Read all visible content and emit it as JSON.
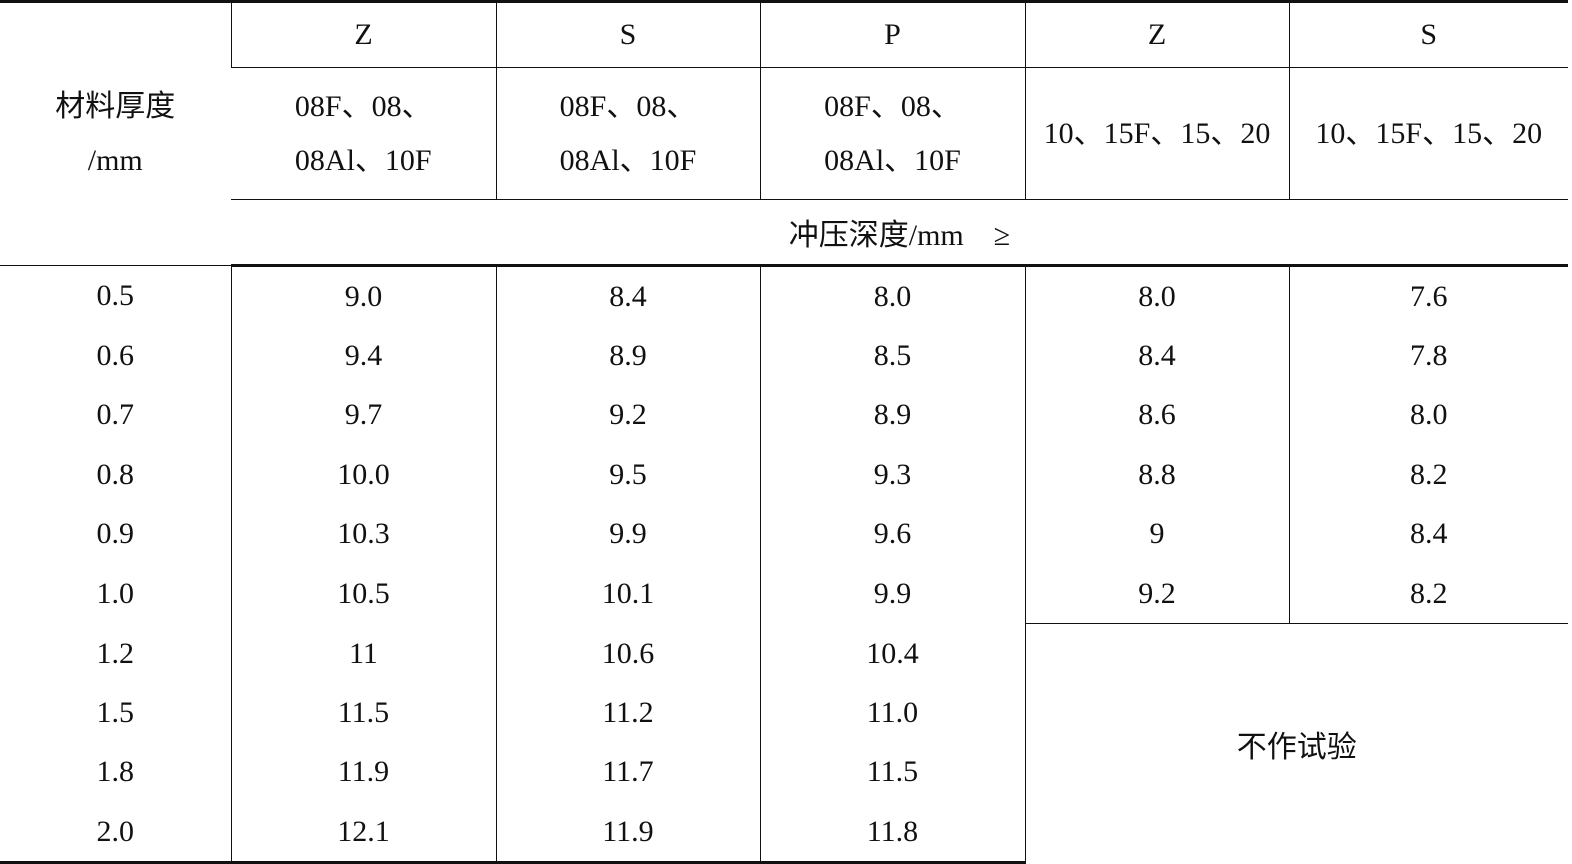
{
  "table": {
    "corner": [
      "材料厚度",
      "/mm"
    ],
    "grades": [
      "Z",
      "S",
      "P",
      "Z",
      "S"
    ],
    "materials": [
      [
        "08F、08、",
        "08Al、10F"
      ],
      [
        "08F、08、",
        "08Al、10F"
      ],
      [
        "08F、08、",
        "08Al、10F"
      ],
      [
        "10、15F、15、20"
      ],
      [
        "10、15F、15、20"
      ]
    ],
    "depth_header": "冲压深度/mm　≥",
    "rows": [
      [
        "0.5",
        "9.0",
        "8.4",
        "8.0",
        "8.0",
        "7.6"
      ],
      [
        "0.6",
        "9.4",
        "8.9",
        "8.5",
        "8.4",
        "7.8"
      ],
      [
        "0.7",
        "9.7",
        "9.2",
        "8.9",
        "8.6",
        "8.0"
      ],
      [
        "0.8",
        "10.0",
        "9.5",
        "9.3",
        "8.8",
        "8.2"
      ],
      [
        "0.9",
        "10.3",
        "9.9",
        "9.6",
        "9",
        "8.4"
      ],
      [
        "1.0",
        "10.5",
        "10.1",
        "9.9",
        "9.2",
        "8.2"
      ],
      [
        "1.2",
        "11",
        "10.6",
        "10.4"
      ],
      [
        "1.5",
        "11.5",
        "11.2",
        "11.0"
      ],
      [
        "1.8",
        "11.9",
        "11.7",
        "11.5"
      ],
      [
        "2.0",
        "12.1",
        "11.9",
        "11.8"
      ]
    ],
    "note": "不作试验"
  }
}
